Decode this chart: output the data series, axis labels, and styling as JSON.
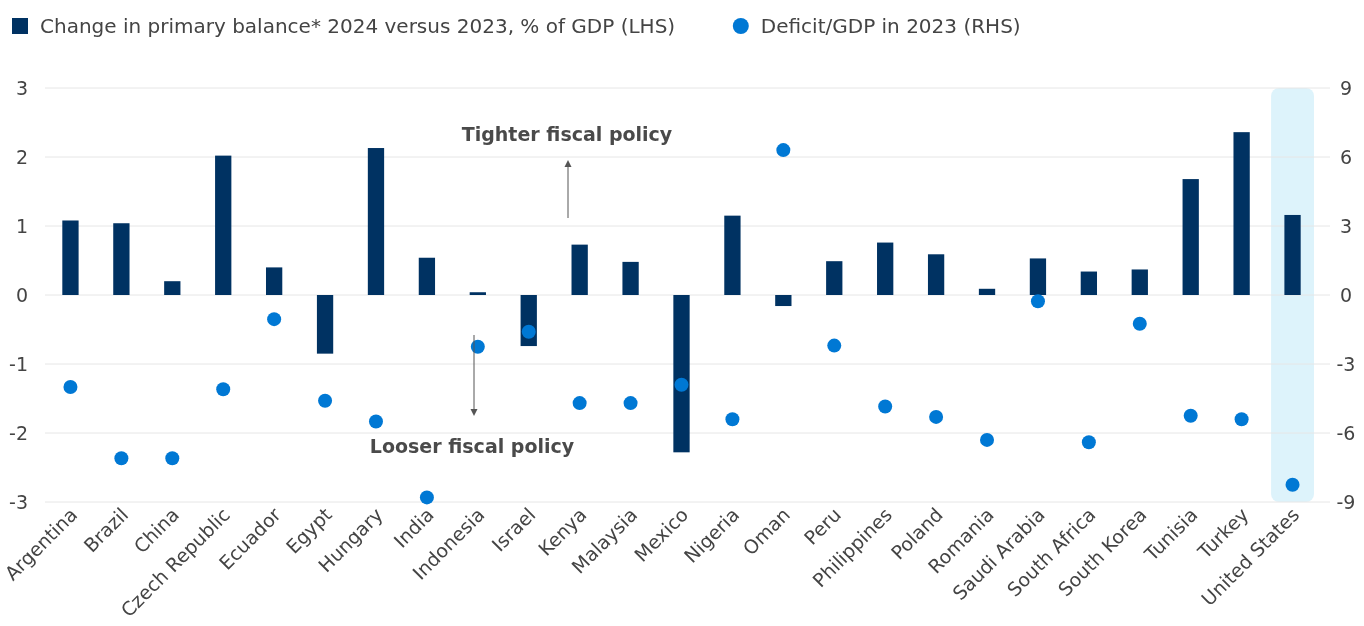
{
  "chart_data": {
    "type": "bar",
    "categories": [
      "Argentina",
      "Brazil",
      "China",
      "Czech Republic",
      "Ecuador",
      "Egypt",
      "Hungary",
      "India",
      "Indonesia",
      "Israel",
      "Kenya",
      "Malaysia",
      "Mexico",
      "Nigeria",
      "Oman",
      "Peru",
      "Philippines",
      "Poland",
      "Romania",
      "Saudi Arabia",
      "South Africa",
      "South Korea",
      "Tunisia",
      "Turkey",
      "United States"
    ],
    "series": [
      {
        "name": "Change in primary balance* 2024 versus 2023, % of GDP (LHS)",
        "color": "#003262",
        "values": [
          1.08,
          1.04,
          0.2,
          2.02,
          0.4,
          -0.85,
          2.13,
          0.54,
          0.04,
          -0.74,
          0.73,
          0.48,
          -2.28,
          1.15,
          -0.16,
          0.49,
          0.76,
          0.59,
          0.09,
          0.53,
          0.34,
          0.37,
          1.68,
          2.36,
          1.16
        ]
      },
      {
        "name": "Deficit/GDP in 2023 (RHS)",
        "type": "scatter",
        "axis": "y2",
        "color": "#0078d4",
        "values": [
          -4.0,
          -7.1,
          -7.1,
          -4.1,
          -1.05,
          -4.6,
          -5.5,
          -8.8,
          -2.25,
          -1.6,
          -4.7,
          -4.7,
          -3.9,
          -5.4,
          6.3,
          -2.2,
          -4.85,
          -5.3,
          -6.3,
          -0.27,
          -6.4,
          -1.25,
          -5.25,
          -5.4,
          -8.25
        ]
      }
    ],
    "ylim": [
      -3,
      3
    ],
    "yticks": [
      -3,
      -2,
      -1,
      0,
      1,
      2,
      3
    ],
    "y2lim": [
      -9,
      9
    ],
    "y2ticks": [
      -9,
      -6,
      -3,
      0,
      3,
      6,
      9
    ],
    "grid": "y",
    "legend": "top left",
    "marker": "circle",
    "bands": [
      {
        "axis": "x",
        "from": "United States",
        "to": "United States",
        "color": "#ddf3fb"
      }
    ],
    "annotations": [
      "Tighter fiscal policy",
      "Looser fiscal policy"
    ]
  }
}
